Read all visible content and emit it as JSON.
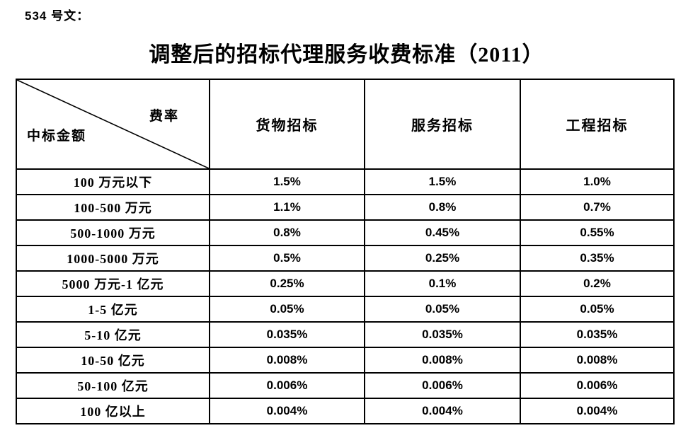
{
  "doc_ref": "534 号文：",
  "title": "调整后的招标代理服务收费标准（2011）",
  "table": {
    "corner": {
      "top_right": "费率",
      "bottom_left": "中标金额"
    },
    "columns": [
      "货物招标",
      "服务招标",
      "工程招标"
    ],
    "rows": [
      {
        "label": "100 万元以下",
        "values": [
          "1.5%",
          "1.5%",
          "1.0%"
        ]
      },
      {
        "label": "100-500 万元",
        "values": [
          "1.1%",
          "0.8%",
          "0.7%"
        ]
      },
      {
        "label": "500-1000 万元",
        "values": [
          "0.8%",
          "0.45%",
          "0.55%"
        ]
      },
      {
        "label": "1000-5000 万元",
        "values": [
          "0.5%",
          "0.25%",
          "0.35%"
        ]
      },
      {
        "label": "5000 万元-1 亿元",
        "values": [
          "0.25%",
          "0.1%",
          "0.2%"
        ]
      },
      {
        "label": "1-5 亿元",
        "values": [
          "0.05%",
          "0.05%",
          "0.05%"
        ]
      },
      {
        "label": "5-10 亿元",
        "values": [
          "0.035%",
          "0.035%",
          "0.035%"
        ]
      },
      {
        "label": "10-50 亿元",
        "values": [
          "0.008%",
          "0.008%",
          "0.008%"
        ]
      },
      {
        "label": "50-100 亿元",
        "values": [
          "0.006%",
          "0.006%",
          "0.006%"
        ]
      },
      {
        "label": "100 亿以上",
        "values": [
          "0.004%",
          "0.004%",
          "0.004%"
        ]
      }
    ]
  },
  "colors": {
    "text": "#000000",
    "border": "#000000",
    "background": "#ffffff"
  }
}
